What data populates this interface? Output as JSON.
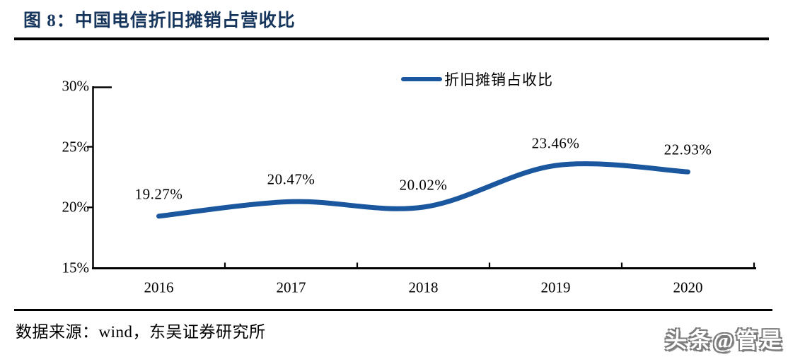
{
  "figure_title": "图 8：中国电信折旧摊销占营收比",
  "chart_data": {
    "type": "line",
    "title": "中国电信折旧摊销占营收比",
    "categories": [
      "2016",
      "2017",
      "2018",
      "2019",
      "2020"
    ],
    "series": [
      {
        "name": "折旧摊销占收比",
        "values": [
          19.27,
          20.47,
          20.02,
          23.46,
          22.93
        ],
        "color": "#1A579E"
      }
    ],
    "point_labels": [
      "19.27%",
      "20.47%",
      "20.02%",
      "23.46%",
      "22.93%"
    ],
    "ylim": [
      15,
      30
    ],
    "ytick_values": [
      30,
      25,
      20,
      15
    ],
    "ytick_labels": [
      "30%",
      "25%",
      "20%",
      "15%"
    ],
    "legend": {
      "label": "折旧摊销占收比",
      "position": "top-center"
    },
    "grid": false,
    "smooth": true
  },
  "source_text": "数据来源：wind，东吴证券研究所",
  "watermark_text": "头条@管是",
  "colors": {
    "title": "#17365D",
    "line": "#1A579E",
    "axis": "#000000",
    "rule": "#000000",
    "text": "#000000",
    "watermark_outline": "#7b7b7b"
  }
}
